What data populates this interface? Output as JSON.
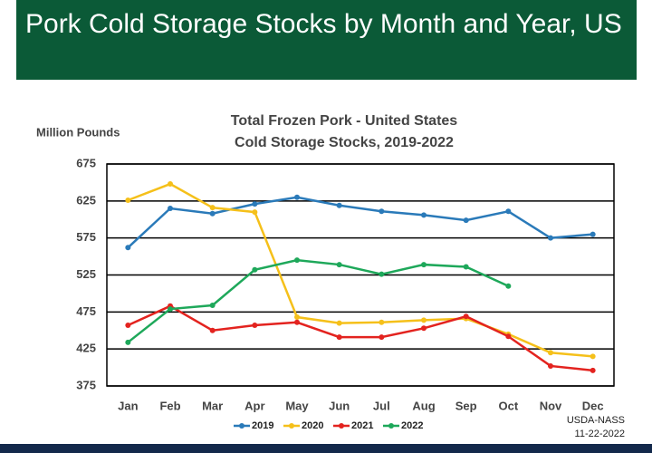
{
  "header": {
    "title": "Pork Cold Storage Stocks by Month and Year, US"
  },
  "chart_data": {
    "type": "line",
    "title": "Total Frozen Pork - United States",
    "subtitle": "Cold Storage Stocks, 2019-2022",
    "y_label": "Million Pounds",
    "source": "USDA-NASS",
    "date": "11-22-2022",
    "categories": [
      "Jan",
      "Feb",
      "Mar",
      "Apr",
      "May",
      "Jun",
      "Jul",
      "Aug",
      "Sep",
      "Oct",
      "Nov",
      "Dec"
    ],
    "series": [
      {
        "name": "2019",
        "color": "#2a7ab9",
        "values": [
          562,
          615,
          608,
          621,
          630,
          619,
          611,
          606,
          599,
          611,
          575,
          580
        ]
      },
      {
        "name": "2020",
        "color": "#f5c01a",
        "values": [
          626,
          648,
          616,
          610,
          468,
          460,
          461,
          464,
          466,
          445,
          420,
          415
        ]
      },
      {
        "name": "2021",
        "color": "#e3231f",
        "values": [
          457,
          483,
          450,
          457,
          461,
          441,
          441,
          453,
          469,
          442,
          402,
          396
        ]
      },
      {
        "name": "2022",
        "color": "#1ea85a",
        "values": [
          434,
          479,
          484,
          532,
          545,
          539,
          526,
          539,
          536,
          510,
          null,
          null
        ]
      }
    ],
    "ylim": [
      375,
      675
    ],
    "yticks": [
      375,
      425,
      475,
      525,
      575,
      625,
      675
    ],
    "grid": true,
    "legend": "bottom"
  }
}
